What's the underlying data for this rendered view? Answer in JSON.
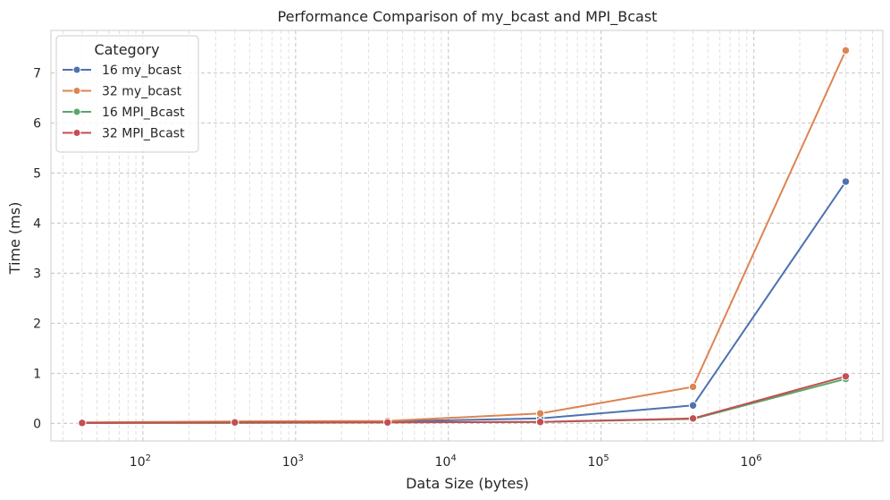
{
  "chart_data": {
    "type": "line",
    "title": "Performance Comparison of my_bcast and MPI_Bcast",
    "xlabel": "Data Size (bytes)",
    "ylabel": "Time (ms)",
    "x_scale": "log",
    "x_range": [
      25,
      7000000
    ],
    "y_range": [
      -0.35,
      7.85
    ],
    "grid": true,
    "x_ticks": [
      100,
      1000,
      10000,
      100000,
      1000000
    ],
    "x_tick_labels": [
      {
        "base": "10",
        "exp": "2"
      },
      {
        "base": "10",
        "exp": "3"
      },
      {
        "base": "10",
        "exp": "4"
      },
      {
        "base": "10",
        "exp": "5"
      },
      {
        "base": "10",
        "exp": "6"
      }
    ],
    "y_ticks": [
      0,
      1,
      2,
      3,
      4,
      5,
      6,
      7
    ],
    "legend": {
      "title": "Category",
      "position": "top-left"
    },
    "x": [
      40,
      400,
      4000,
      40000,
      400000,
      4000000
    ],
    "series": [
      {
        "name": "16 my_bcast",
        "color": "#4c72b0",
        "values": [
          0.01,
          0.03,
          0.04,
          0.1,
          0.36,
          4.83
        ]
      },
      {
        "name": "32 my_bcast",
        "color": "#dd8452",
        "values": [
          0.02,
          0.04,
          0.05,
          0.2,
          0.73,
          7.45
        ]
      },
      {
        "name": "16 MPI_Bcast",
        "color": "#55a868",
        "values": [
          0.01,
          0.01,
          0.02,
          0.03,
          0.09,
          0.89
        ]
      },
      {
        "name": "32 MPI_Bcast",
        "color": "#c44e52",
        "values": [
          0.01,
          0.02,
          0.02,
          0.03,
          0.1,
          0.94
        ]
      }
    ]
  }
}
